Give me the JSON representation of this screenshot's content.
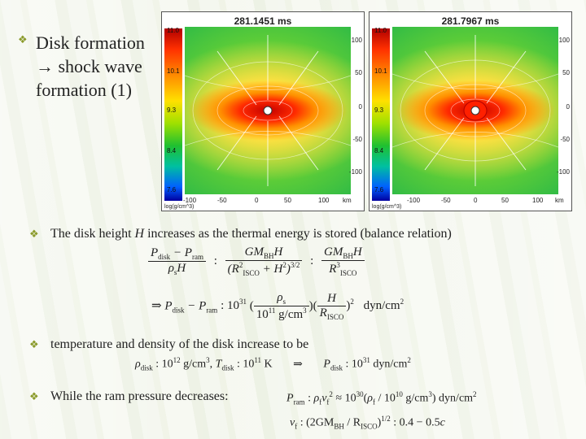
{
  "slide": {
    "title_lines": [
      "Disk formation",
      "→ shock wave",
      "formation (1)"
    ]
  },
  "panels": [
    {
      "time": "281.1451 ms",
      "cb_ticks": [
        "11.0",
        "10.1",
        "9.3",
        "8.4",
        "7.6"
      ],
      "cb_unit": "log(g/cm^3)",
      "right_ticks": [
        "100",
        "50",
        "0",
        "-50",
        "-100"
      ],
      "bottom_ticks": [
        "-100",
        "-50",
        "0",
        "50",
        "100"
      ],
      "unit": "km"
    },
    {
      "time": "281.7967 ms",
      "cb_ticks": [
        "11.0",
        "10.1",
        "9.3",
        "8.4",
        "7.6"
      ],
      "cb_unit": "log(g/cm^3)",
      "right_ticks": [
        "100",
        "50",
        "0",
        "-50",
        "-100"
      ],
      "bottom_ticks": [
        "-100",
        "-50",
        "0",
        "50",
        "100"
      ],
      "unit": "km"
    }
  ],
  "bullets": [
    {
      "pre": "The disk height ",
      "var": "H",
      "post": " increases as the thermal energy is stored (balance relation)"
    },
    {
      "text": "temperature and density of the disk increase to be"
    },
    {
      "text": "While the ram pressure decreases:"
    }
  ]
}
